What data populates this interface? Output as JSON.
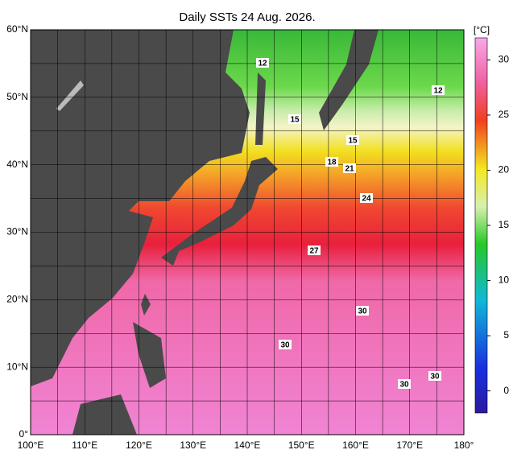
{
  "title": "Daily SSTs 24 Aug. 2026.",
  "lat_labels": [
    "0°",
    "10°N",
    "20°N",
    "30°N",
    "40°N",
    "50°N",
    "60°N"
  ],
  "lon_labels": [
    "100°E",
    "110°E",
    "120°E",
    "130°E",
    "140°E",
    "150°E",
    "160°E",
    "170°E",
    "180°"
  ],
  "colorbar": {
    "unit": "[°C]",
    "lim": [
      -2,
      32
    ],
    "ticks": [
      0,
      5,
      10,
      15,
      20,
      25,
      30
    ]
  },
  "contour_labels": [
    "12",
    "12",
    "15",
    "15",
    "18",
    "21",
    "24",
    "27",
    "30",
    "30",
    "30",
    "30"
  ]
}
